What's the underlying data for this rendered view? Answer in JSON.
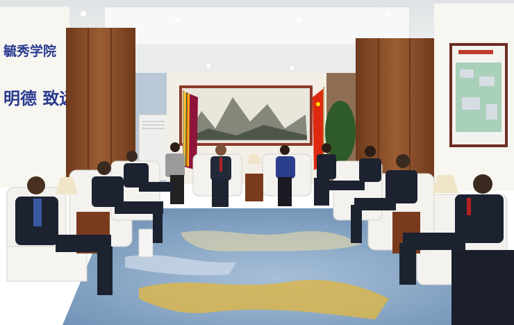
{
  "wall_text": {
    "line1": "毓秀学院",
    "line2": "明德 致远"
  },
  "colors": {
    "ceiling": "#eef0f1",
    "wood_paneling": "#8a4f2a",
    "wall_light": "#f4f1ea",
    "carpet_base": "#7fa2c6",
    "carpet_gold": "#d9b64f",
    "sofa_white": "#f3f2ef",
    "suit_dark": "#1c2230",
    "flag_china_red": "#de2910",
    "flag_srilanka_maroon": "#8d153a",
    "flag_srilanka_gold": "#ffbe29"
  },
  "scene": {
    "flags": [
      "flag-sri-lanka",
      "flag-china"
    ],
    "items": [
      "landscape-painting",
      "campus-map",
      "air-conditioner",
      "potted-plant",
      "table-lamp"
    ]
  }
}
